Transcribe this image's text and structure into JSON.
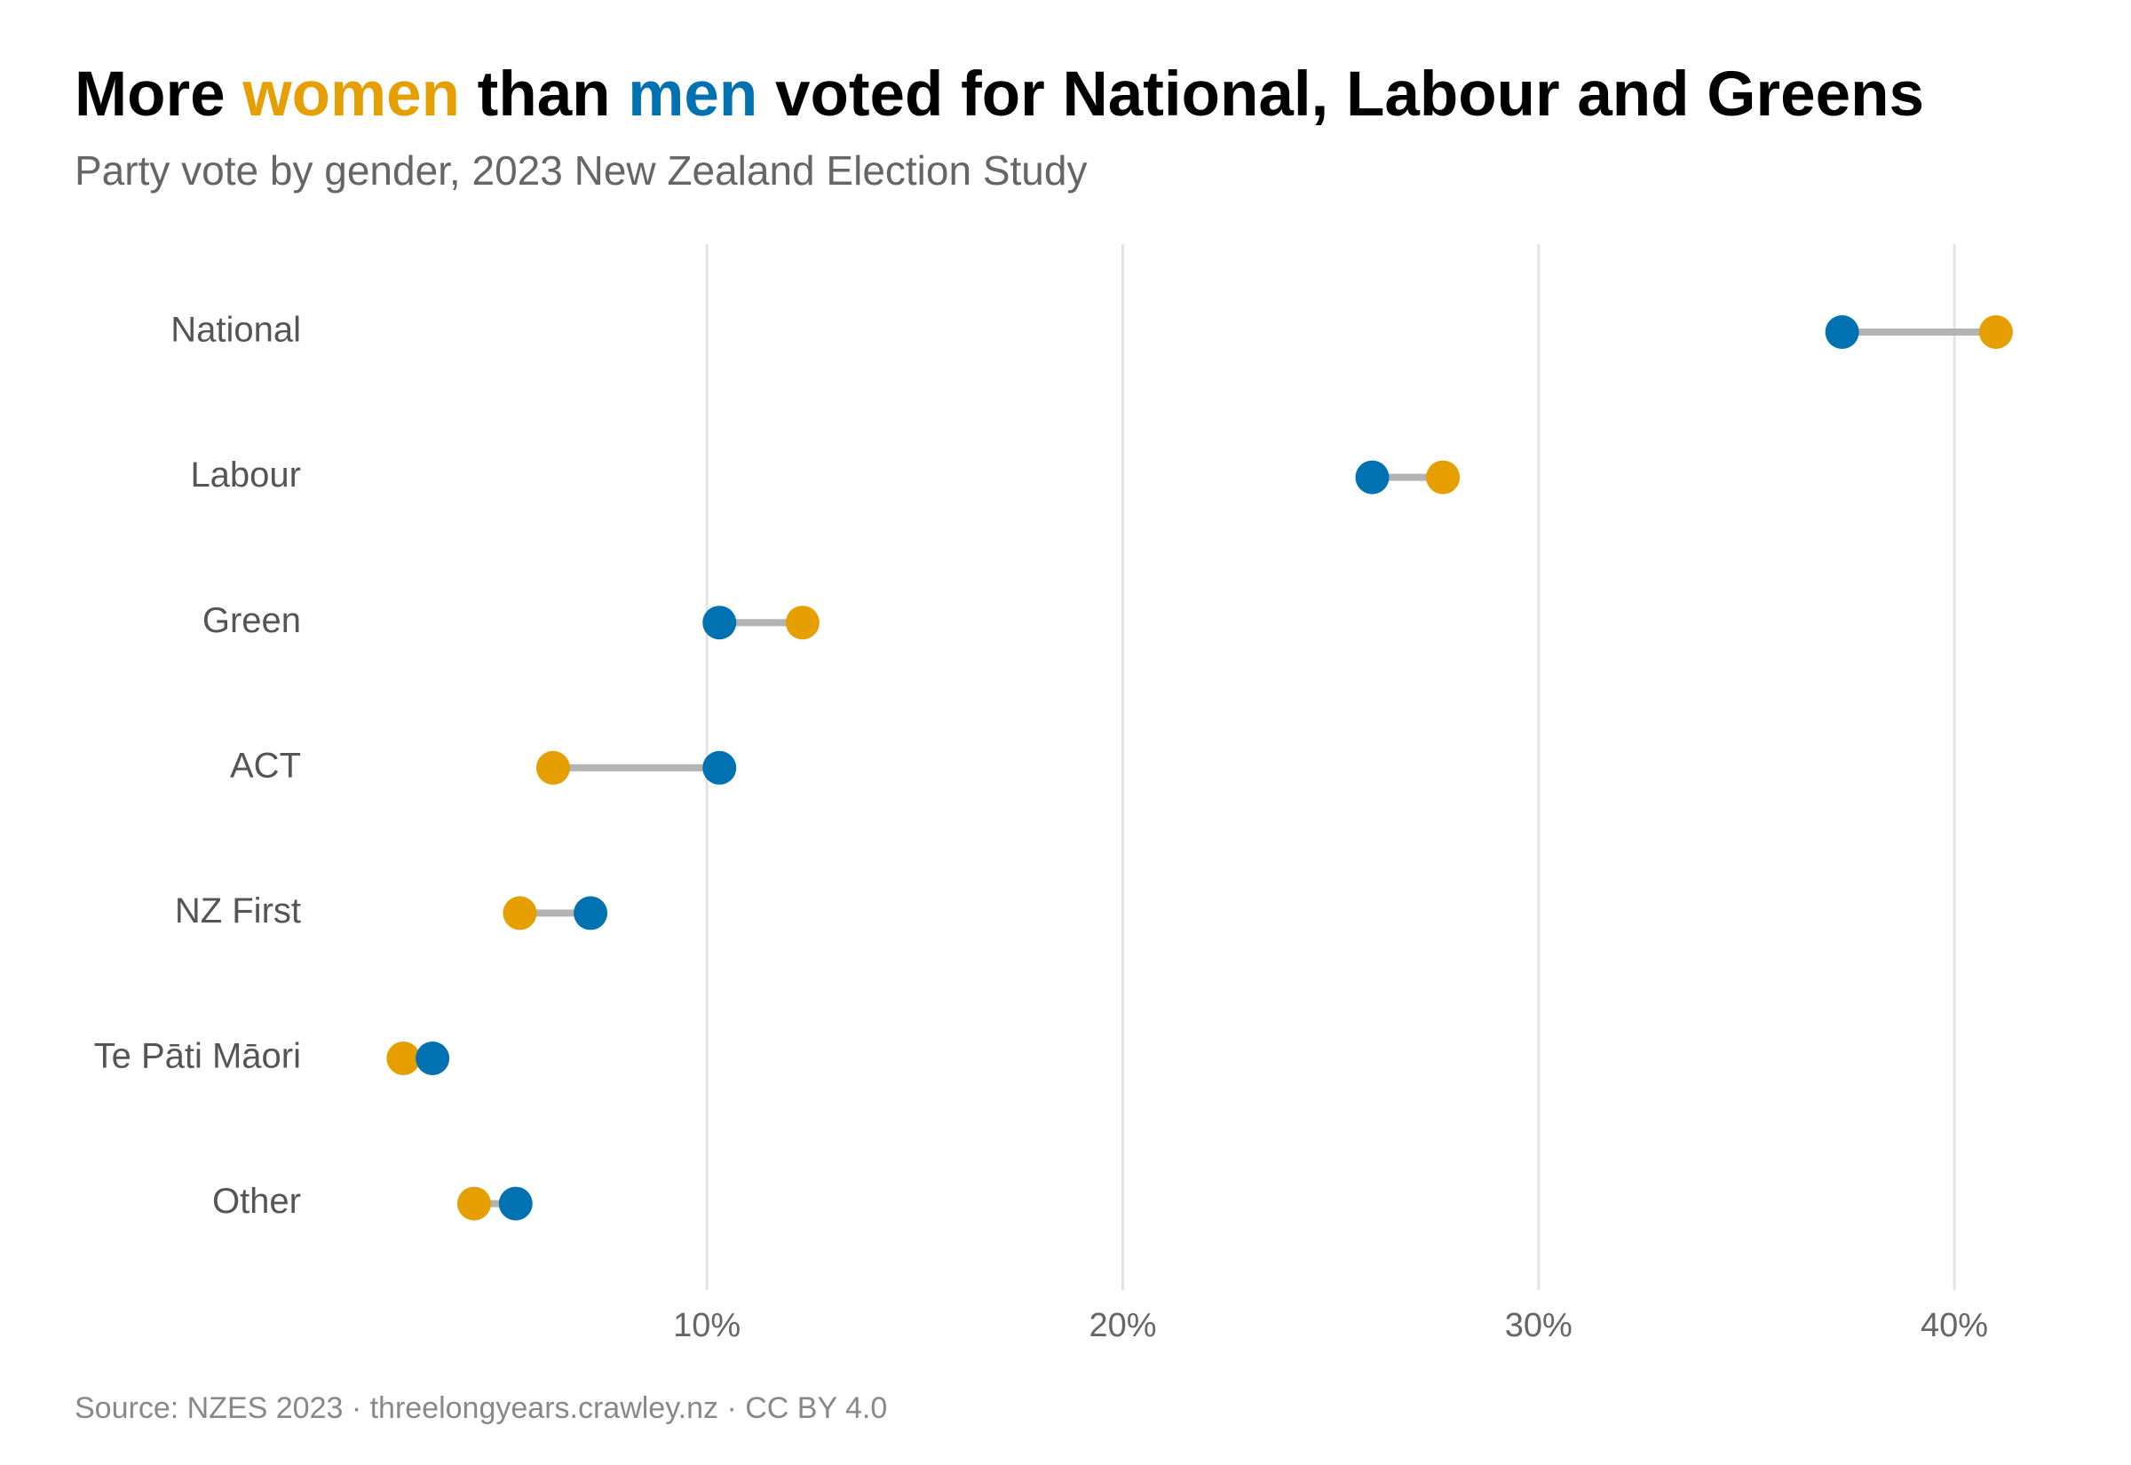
{
  "chart_data": {
    "type": "dumbbell",
    "title": [
      {
        "text": "More "
      },
      {
        "text": "women",
        "color": "#e69f00"
      },
      {
        "text": " than "
      },
      {
        "text": "men",
        "color": "#0072b2"
      },
      {
        "text": " voted for National, Labour and Greens"
      }
    ],
    "subtitle": "Party vote by gender, 2023 New Zealand Election Study",
    "source": "Source: NZES 2023 · threelongyears.crawley.nz · CC BY 4.0",
    "categories": [
      "National",
      "Labour",
      "Green",
      "ACT",
      "NZ First",
      "Te Pāti Māori",
      "Other"
    ],
    "series": [
      {
        "color": "#e69f00",
        "values": [
          41.0,
          27.7,
          12.3,
          6.3,
          5.5,
          2.7,
          4.4
        ]
      },
      {
        "color": "#0072b2",
        "values": [
          37.3,
          26.0,
          10.3,
          10.3,
          7.2,
          3.4,
          5.4
        ]
      }
    ],
    "connector_color": "#b3b3b3",
    "xlim": [
      0.6,
      41.6
    ],
    "xticks": [
      {
        "value": 10,
        "label": "10%"
      },
      {
        "value": 20,
        "label": "20%"
      },
      {
        "value": 30,
        "label": "30%"
      },
      {
        "value": 40,
        "label": "40%"
      }
    ],
    "grid": true
  }
}
